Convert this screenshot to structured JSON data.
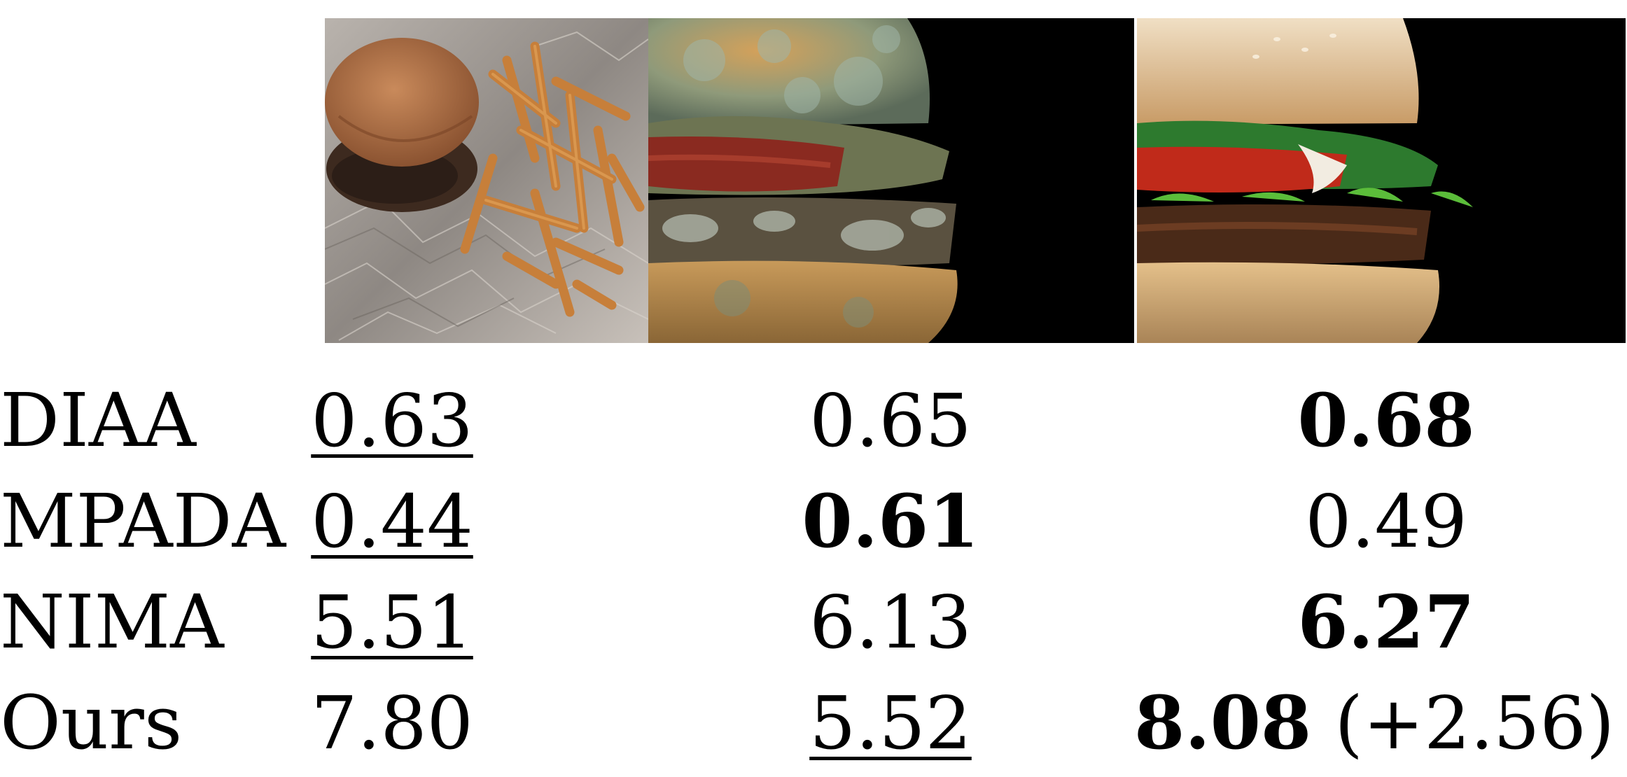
{
  "images": [
    {
      "icon": "burger-with-fries-on-foil-photo"
    },
    {
      "icon": "moldy-burger-photo"
    },
    {
      "icon": "fresh-burger-photo"
    }
  ],
  "rows": [
    {
      "method": "DIAA",
      "scores": [
        "0.63",
        "0.65",
        "0.68"
      ]
    },
    {
      "method": "MPADA",
      "scores": [
        "0.44",
        "0.61",
        "0.49"
      ]
    },
    {
      "method": "NIMA",
      "scores": [
        "5.51",
        "6.13",
        "6.27"
      ]
    },
    {
      "method": "Ours",
      "scores": [
        "7.80",
        "5.52",
        "8.08"
      ],
      "delta": "(+2.56)"
    }
  ]
}
